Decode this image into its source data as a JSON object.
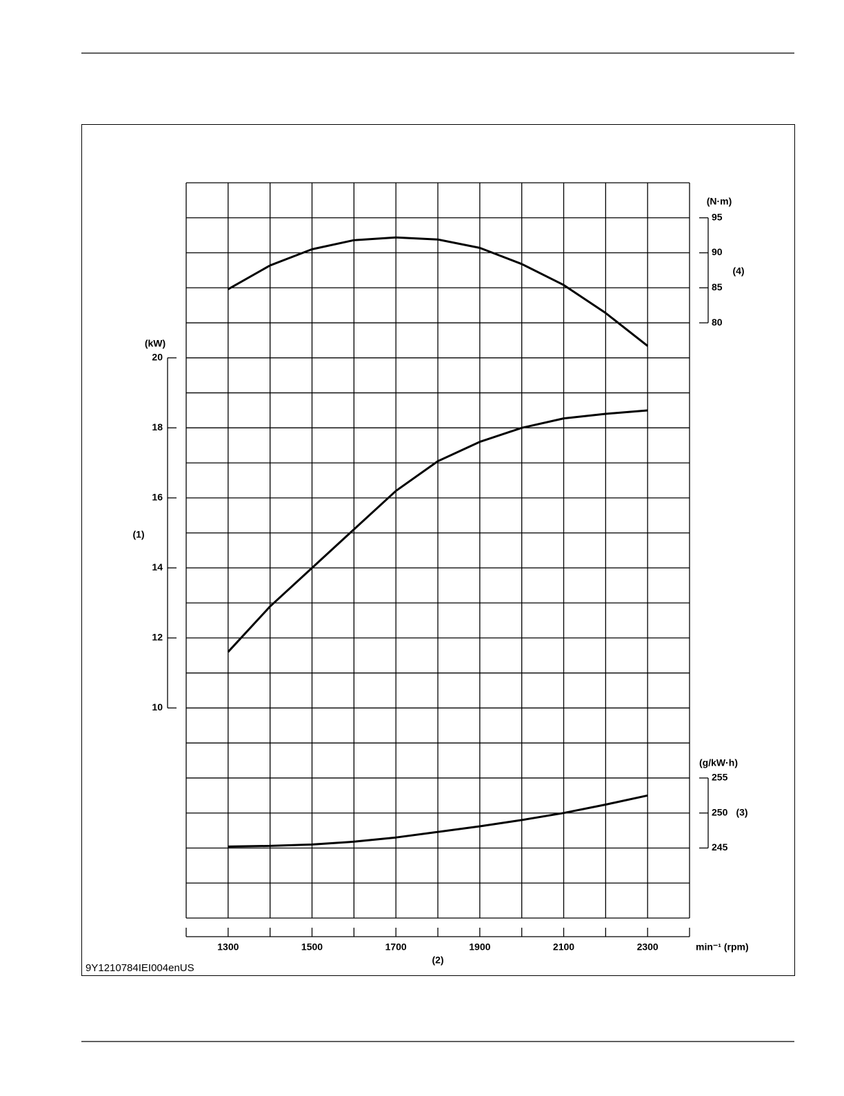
{
  "figure_code": "9Y1210784IEI004enUS",
  "chart_data": {
    "type": "line",
    "xlabel": "(2)",
    "xunit": "min⁻¹ (rpm)",
    "ylabel": "(1)",
    "yunit": "(kW)",
    "y2label": "(4)",
    "y2unit": "(N·m)",
    "y3label": "(3)",
    "y3unit": "(g/kW·h)",
    "x": [
      1300,
      1400,
      1500,
      1600,
      1700,
      1800,
      1900,
      2000,
      2100,
      2200,
      2300
    ],
    "xlim": [
      1200,
      2400
    ],
    "xticks": [
      1300,
      1500,
      1700,
      1900,
      2100,
      2300
    ],
    "ylim": [
      4,
      25
    ],
    "yticks": [
      10,
      12,
      14,
      16,
      18,
      20
    ],
    "y2lim": [
      -5,
      100
    ],
    "y2ticks": [
      80,
      85,
      90,
      95
    ],
    "y3lim": [
      235,
      340
    ],
    "y3ticks": [
      245,
      250,
      255
    ],
    "grid": true,
    "series": [
      {
        "color": "#000000",
        "axis": "y",
        "values": [
          11.6,
          12.9,
          14.0,
          15.1,
          16.2,
          17.05,
          17.6,
          18.0,
          18.27,
          18.4,
          18.5
        ]
      },
      {
        "color": "#000000",
        "axis": "y2",
        "values": [
          84.8,
          88.2,
          90.5,
          91.8,
          92.2,
          91.9,
          90.7,
          88.4,
          85.4,
          81.4,
          76.7
        ]
      },
      {
        "color": "#000000",
        "axis": "y3",
        "values": [
          245.2,
          245.3,
          245.5,
          245.9,
          246.5,
          247.3,
          248.1,
          249.0,
          250.0,
          251.2,
          252.5
        ]
      }
    ]
  }
}
